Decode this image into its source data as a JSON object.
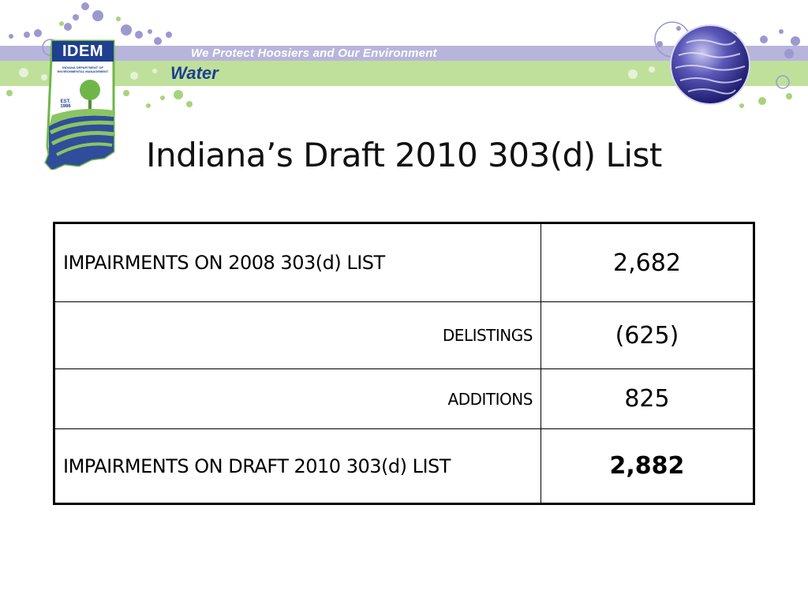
{
  "banner": {
    "tagline": "We Protect Hoosiers and Our Environment",
    "section": "Water",
    "colors": {
      "lilac": "#b7b5dc",
      "green": "#bfe09a",
      "navy": "#1f3f8f"
    }
  },
  "logo": {
    "acronym": "IDEM",
    "department": "INDIANA DEPARTMENT OF ENVIRONMENTAL MANAGEMENT",
    "est": "EST.",
    "year": "1986"
  },
  "slide": {
    "title": "Indiana’s Draft 2010 303(d) List"
  },
  "table": {
    "rows": [
      {
        "label": "IMPAIRMENTS ON 2008 303(d) LIST",
        "value": "2,682"
      },
      {
        "label": "DELISTINGS",
        "value": "(625)"
      },
      {
        "label": "ADDITIONS",
        "value": "825"
      },
      {
        "label": "IMPAIRMENTS ON DRAFT 2010 303(d) LIST",
        "value": "2,882"
      }
    ]
  }
}
